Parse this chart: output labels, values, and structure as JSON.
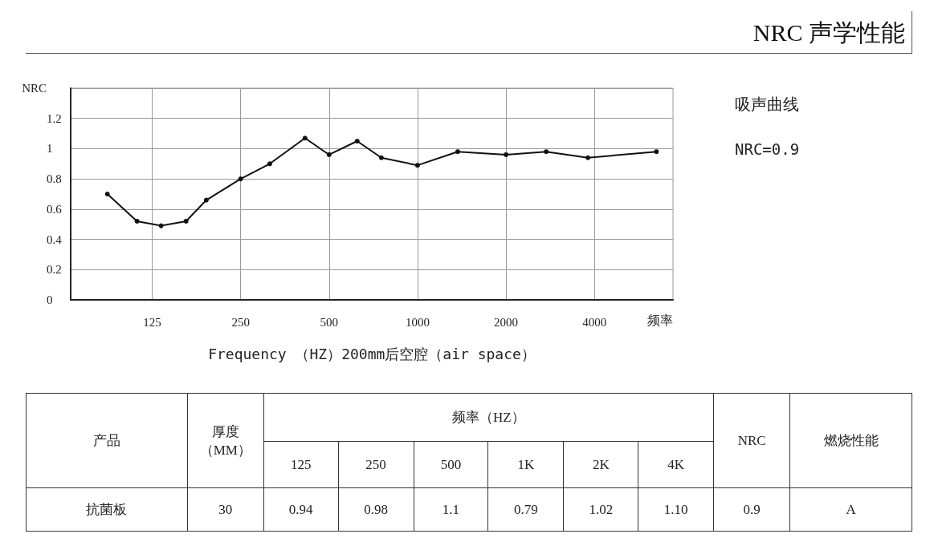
{
  "chart_data": {
    "type": "line",
    "title": "NRC 声学性能",
    "xlabel": "Frequency （HZ）200mm后空腔（air space）",
    "ylabel": "NRC",
    "annotations": [
      "吸声曲线",
      "NRC=0.9",
      "频率",
      "产品",
      "厚度",
      "（MM）",
      "频率（HZ）",
      "125",
      "250",
      "500",
      "1K",
      "2K",
      "4K",
      "NRC",
      "燃烧性能",
      "抗菌板",
      "30",
      "0.94",
      "0.98",
      "1.1",
      "0.79",
      "1.02",
      "1.10",
      "0.9",
      "A"
    ],
    "x": [
      88,
      111,
      134,
      163,
      191,
      250,
      314,
      414,
      500,
      623,
      753,
      1000,
      1370,
      2000,
      2740,
      3800,
      6500
    ],
    "values": [
      0.7,
      0.52,
      0.49,
      0.52,
      0.66,
      0.8,
      0.9,
      1.07,
      0.96,
      1.05,
      0.94,
      0.89,
      0.98,
      0.96,
      0.98,
      0.94,
      0.98
    ],
    "color": "#111111",
    "log": "x",
    "xlim": [
      66,
      7400
    ],
    "ylim": [
      0,
      1.4
    ],
    "xticks": [
      125,
      250,
      500,
      1000,
      2000,
      4000
    ],
    "yticks": [
      0,
      0.2,
      0.4,
      0.6,
      0.8,
      1,
      1.2,
      {
        "value": 1.4,
        "label": null
      }
    ],
    "grid": true,
    "marker": "circle",
    "line_style": "solid"
  }
}
